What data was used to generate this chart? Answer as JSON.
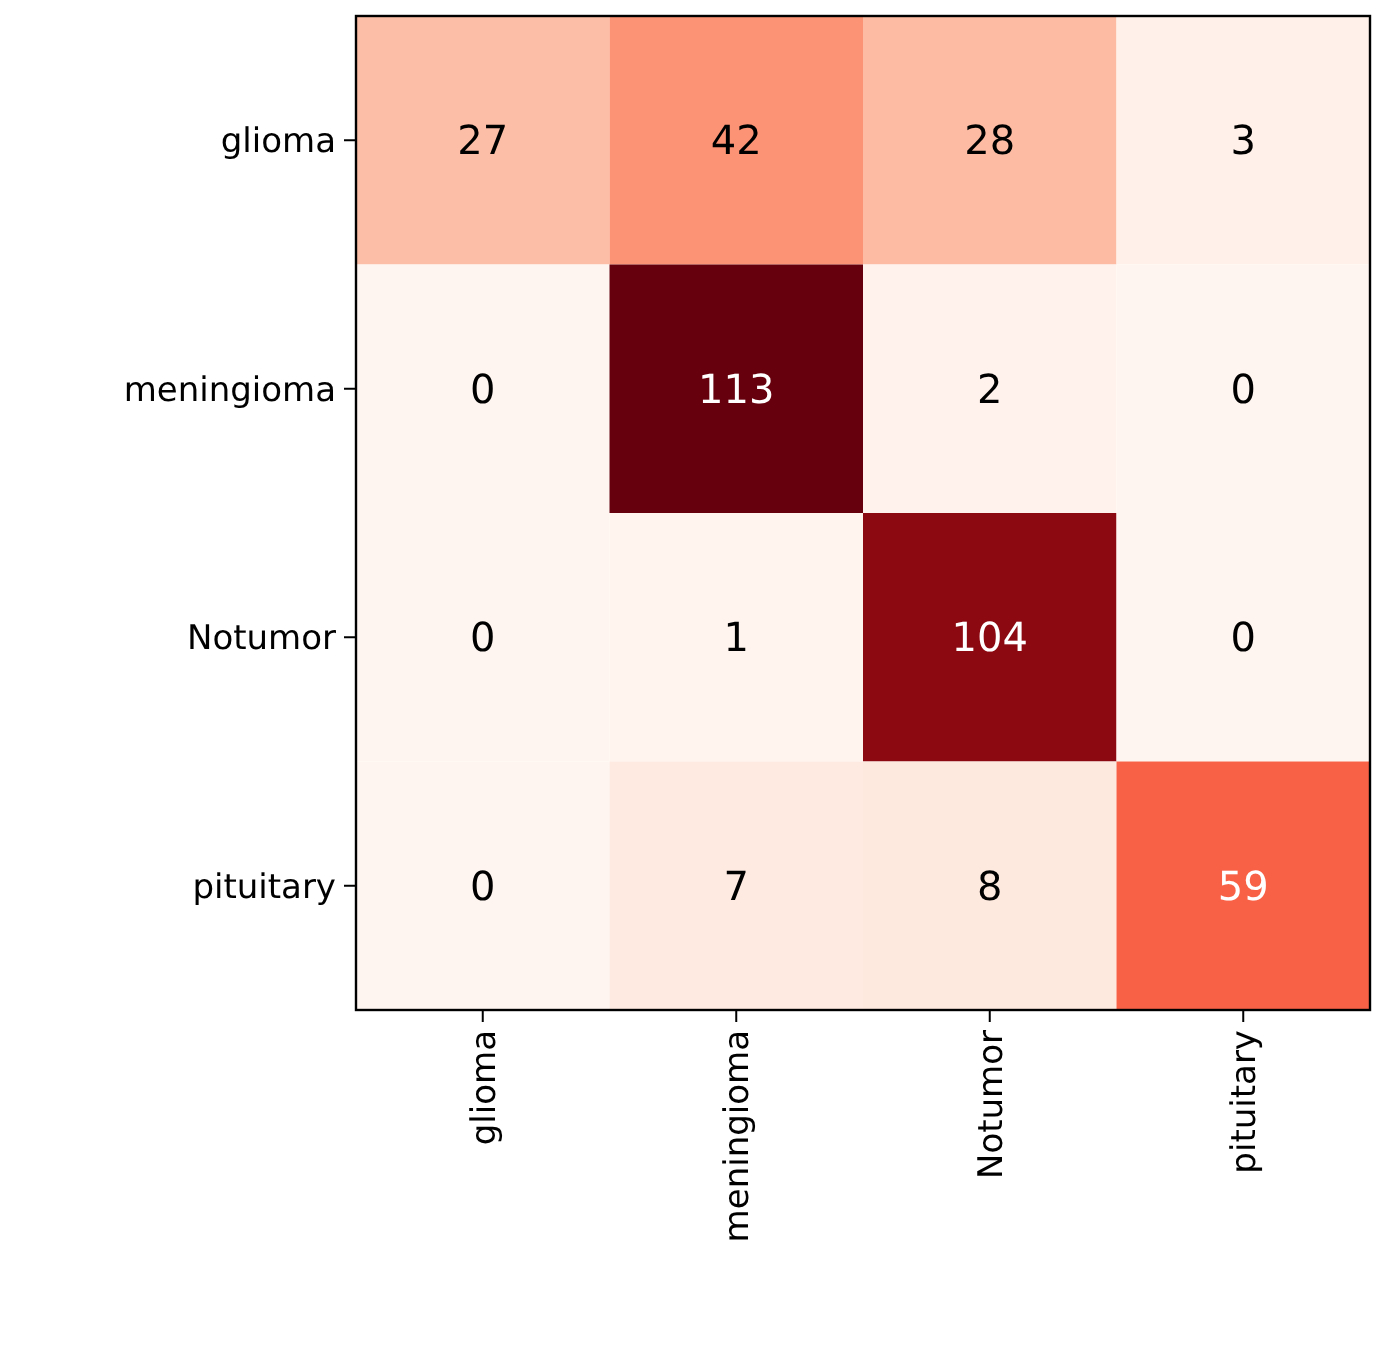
{
  "chart_data": {
    "type": "heatmap",
    "categories": [
      "glioma",
      "meningioma",
      "Notumor",
      "pituitary"
    ],
    "y_categories": [
      "glioma",
      "meningioma",
      "Notumor",
      "pituitary"
    ],
    "cells": [
      [
        27,
        42,
        28,
        3
      ],
      [
        0,
        113,
        2,
        0
      ],
      [
        0,
        1,
        104,
        0
      ],
      [
        0,
        7,
        8,
        59
      ]
    ],
    "data_labels": true
  }
}
